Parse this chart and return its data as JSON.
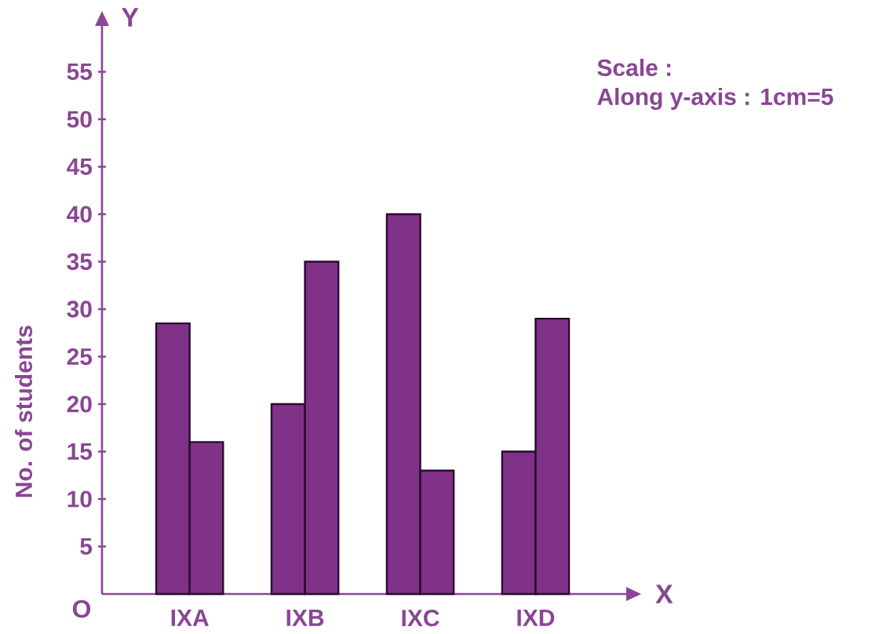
{
  "chart_data": {
    "type": "bar",
    "xlabel": "X",
    "ylabel": "No. of students",
    "categories": [
      "IXA",
      "IXB",
      "IXC",
      "IXD"
    ],
    "series": [
      {
        "color": "#7f3288",
        "values": [
          28.5,
          20,
          40,
          15
        ]
      },
      {
        "color": "#7f3288",
        "values": [
          16,
          35,
          13,
          29
        ]
      }
    ],
    "ylim": [
      0,
      60
    ],
    "yticks": [
      5,
      10,
      15,
      20,
      25,
      30,
      35,
      40,
      45,
      50,
      55
    ],
    "annotations": [
      "Y",
      "O",
      "Scale :",
      "Along y-axis : 1cm=5"
    ]
  }
}
